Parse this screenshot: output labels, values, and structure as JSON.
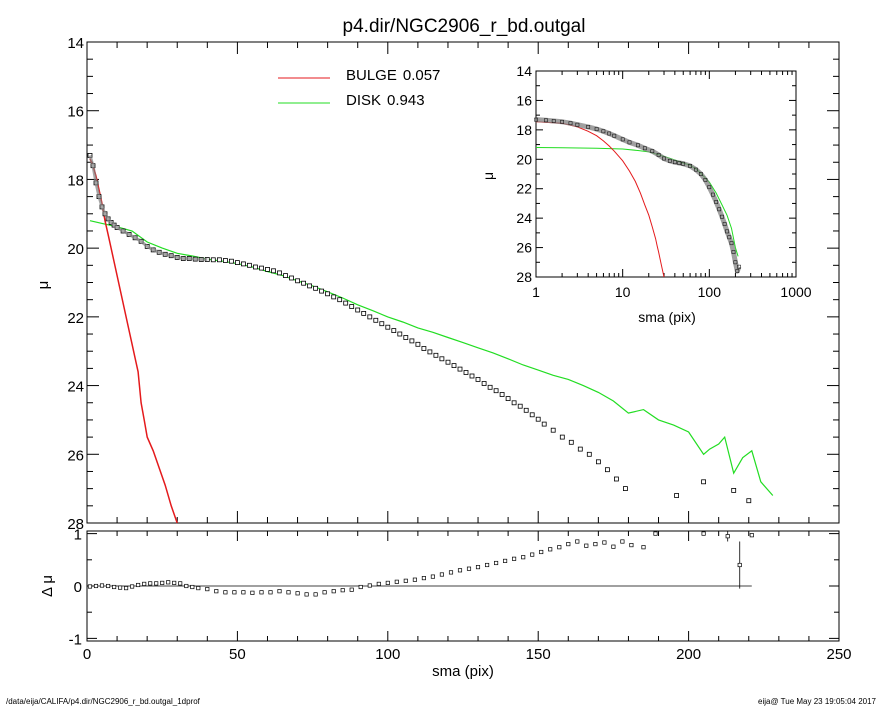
{
  "title": "p4.dir/NGC2906_r_bd.outgal",
  "footer_left": "/data/eija/CALIFA/p4.dir/NGC2906_r_bd.outgal_1dprof",
  "footer_right": "eija@  Tue May 23 19:05:04 2017",
  "colors": {
    "bulge": "#e41a1c",
    "disk": "#22dd22",
    "data": "#000000",
    "band": "#808080"
  },
  "legend": [
    {
      "name": "BULGE",
      "value": "0.057",
      "color": "#e41a1c"
    },
    {
      "name": "DISK",
      "value": "0.943",
      "color": "#22dd22"
    }
  ],
  "chart_data": [
    {
      "id": "main",
      "type": "scatter",
      "xlabel": "sma (pix)",
      "ylabel": "μ",
      "xlim": [
        0,
        250
      ],
      "ylim": [
        28,
        14
      ],
      "y_inverted": true,
      "xticks": [
        "0",
        "50",
        "100",
        "150",
        "200",
        "250"
      ],
      "yticks": [
        "14",
        "16",
        "18",
        "20",
        "22",
        "24",
        "26",
        "28"
      ],
      "data_points": [
        [
          1,
          17.3
        ],
        [
          2,
          17.6
        ],
        [
          3,
          18.1
        ],
        [
          4,
          18.5
        ],
        [
          5,
          18.8
        ],
        [
          6,
          19.0
        ],
        [
          7,
          19.15
        ],
        [
          8,
          19.25
        ],
        [
          9,
          19.33
        ],
        [
          10,
          19.4
        ],
        [
          12,
          19.5
        ],
        [
          14,
          19.6
        ],
        [
          16,
          19.7
        ],
        [
          18,
          19.8
        ],
        [
          20,
          19.95
        ],
        [
          22,
          20.05
        ],
        [
          24,
          20.12
        ],
        [
          26,
          20.18
        ],
        [
          28,
          20.22
        ],
        [
          30,
          20.27
        ],
        [
          32,
          20.3
        ],
        [
          34,
          20.3
        ],
        [
          36,
          20.32
        ],
        [
          38,
          20.33
        ],
        [
          40,
          20.33
        ],
        [
          42,
          20.34
        ],
        [
          44,
          20.34
        ],
        [
          46,
          20.36
        ],
        [
          48,
          20.38
        ],
        [
          50,
          20.42
        ],
        [
          52,
          20.46
        ],
        [
          54,
          20.5
        ],
        [
          56,
          20.55
        ],
        [
          58,
          20.58
        ],
        [
          60,
          20.62
        ],
        [
          62,
          20.66
        ],
        [
          64,
          20.72
        ],
        [
          66,
          20.8
        ],
        [
          68,
          20.87
        ],
        [
          70,
          20.95
        ],
        [
          72,
          21.02
        ],
        [
          74,
          21.1
        ],
        [
          76,
          21.17
        ],
        [
          78,
          21.25
        ],
        [
          80,
          21.33
        ],
        [
          82,
          21.42
        ],
        [
          84,
          21.5
        ],
        [
          86,
          21.6
        ],
        [
          88,
          21.7
        ],
        [
          90,
          21.8
        ],
        [
          92,
          21.9
        ],
        [
          94,
          22.0
        ],
        [
          96,
          22.1
        ],
        [
          98,
          22.2
        ],
        [
          100,
          22.3
        ],
        [
          102,
          22.4
        ],
        [
          104,
          22.5
        ],
        [
          106,
          22.6
        ],
        [
          108,
          22.7
        ],
        [
          110,
          22.8
        ],
        [
          112,
          22.92
        ],
        [
          114,
          23.02
        ],
        [
          116,
          23.12
        ],
        [
          118,
          23.22
        ],
        [
          120,
          23.32
        ],
        [
          122,
          23.42
        ],
        [
          124,
          23.52
        ],
        [
          126,
          23.62
        ],
        [
          128,
          23.72
        ],
        [
          130,
          23.82
        ],
        [
          132,
          23.94
        ],
        [
          134,
          24.05
        ],
        [
          136,
          24.15
        ],
        [
          138,
          24.26
        ],
        [
          140,
          24.38
        ],
        [
          142,
          24.5
        ],
        [
          144,
          24.6
        ],
        [
          146,
          24.72
        ],
        [
          148,
          24.85
        ],
        [
          150,
          24.98
        ],
        [
          152,
          25.12
        ],
        [
          155,
          25.3
        ],
        [
          158,
          25.5
        ],
        [
          161,
          25.65
        ],
        [
          164,
          25.85
        ],
        [
          167,
          26.0
        ],
        [
          170,
          26.22
        ],
        [
          173,
          26.45
        ],
        [
          176,
          26.72
        ],
        [
          179,
          27.0
        ],
        [
          196,
          27.2
        ],
        [
          205,
          26.8
        ],
        [
          215,
          27.05
        ],
        [
          220,
          27.35
        ]
      ],
      "bulge_curve": [
        [
          1,
          17.4
        ],
        [
          2,
          17.6
        ],
        [
          3,
          17.9
        ],
        [
          4,
          18.3
        ],
        [
          5,
          18.7
        ],
        [
          6,
          19.2
        ],
        [
          7,
          19.6
        ],
        [
          8,
          20.0
        ],
        [
          9,
          20.4
        ],
        [
          10,
          20.8
        ],
        [
          11,
          21.2
        ],
        [
          12,
          21.6
        ],
        [
          13,
          22.0
        ],
        [
          14,
          22.4
        ],
        [
          15,
          22.8
        ],
        [
          16,
          23.2
        ],
        [
          17,
          23.6
        ],
        [
          18,
          24.5
        ],
        [
          19,
          25.0
        ],
        [
          20,
          25.5
        ],
        [
          22,
          25.9
        ],
        [
          24,
          26.4
        ],
        [
          26,
          26.9
        ],
        [
          28,
          27.5
        ],
        [
          30,
          28.0
        ]
      ],
      "disk_curve": [
        [
          1,
          19.2
        ],
        [
          5,
          19.28
        ],
        [
          10,
          19.38
        ],
        [
          15,
          19.5
        ],
        [
          20,
          19.82
        ],
        [
          25,
          20.0
        ],
        [
          30,
          20.15
        ],
        [
          35,
          20.23
        ],
        [
          40,
          20.32
        ],
        [
          45,
          20.38
        ],
        [
          50,
          20.45
        ],
        [
          55,
          20.55
        ],
        [
          60,
          20.68
        ],
        [
          65,
          20.8
        ],
        [
          70,
          20.95
        ],
        [
          75,
          21.1
        ],
        [
          80,
          21.27
        ],
        [
          85,
          21.45
        ],
        [
          90,
          21.65
        ],
        [
          95,
          21.82
        ],
        [
          100,
          22.0
        ],
        [
          105,
          22.15
        ],
        [
          110,
          22.32
        ],
        [
          115,
          22.45
        ],
        [
          120,
          22.6
        ],
        [
          125,
          22.75
        ],
        [
          130,
          22.9
        ],
        [
          135,
          23.05
        ],
        [
          140,
          23.22
        ],
        [
          145,
          23.4
        ],
        [
          150,
          23.55
        ],
        [
          155,
          23.7
        ],
        [
          160,
          23.82
        ],
        [
          165,
          24.0
        ],
        [
          170,
          24.2
        ],
        [
          175,
          24.45
        ],
        [
          180,
          24.8
        ],
        [
          185,
          24.7
        ],
        [
          190,
          25.0
        ],
        [
          195,
          25.15
        ],
        [
          200,
          25.35
        ],
        [
          205,
          26.0
        ],
        [
          207,
          25.85
        ],
        [
          210,
          25.7
        ],
        [
          212,
          25.5
        ],
        [
          215,
          26.55
        ],
        [
          218,
          26.1
        ],
        [
          221,
          25.9
        ],
        [
          224,
          26.8
        ],
        [
          228,
          27.2
        ]
      ]
    },
    {
      "id": "residual",
      "type": "scatter",
      "xlabel": "sma (pix)",
      "ylabel": "Δ μ",
      "xlim": [
        0,
        250
      ],
      "ylim": [
        -1.05,
        1.05
      ],
      "xticks": [
        "0",
        "50",
        "100",
        "150",
        "200",
        "250"
      ],
      "yticks": [
        "1",
        "0",
        "-1"
      ],
      "points": [
        [
          1,
          -0.01
        ],
        [
          3,
          0.0
        ],
        [
          5,
          0.01
        ],
        [
          7,
          0.0
        ],
        [
          9,
          -0.02
        ],
        [
          11,
          -0.03
        ],
        [
          13,
          -0.04
        ],
        [
          15,
          -0.01
        ],
        [
          17,
          0.02
        ],
        [
          19,
          0.04
        ],
        [
          21,
          0.05
        ],
        [
          23,
          0.05
        ],
        [
          25,
          0.06
        ],
        [
          27,
          0.07
        ],
        [
          29,
          0.06
        ],
        [
          31,
          0.05
        ],
        [
          33,
          0.0
        ],
        [
          35,
          -0.02
        ],
        [
          37,
          -0.04
        ],
        [
          40,
          -0.06
        ],
        [
          43,
          -0.1
        ],
        [
          46,
          -0.12
        ],
        [
          49,
          -0.12
        ],
        [
          52,
          -0.12
        ],
        [
          55,
          -0.13
        ],
        [
          58,
          -0.12
        ],
        [
          61,
          -0.12
        ],
        [
          64,
          -0.1
        ],
        [
          67,
          -0.12
        ],
        [
          70,
          -0.14
        ],
        [
          73,
          -0.16
        ],
        [
          76,
          -0.16
        ],
        [
          79,
          -0.12
        ],
        [
          82,
          -0.1
        ],
        [
          85,
          -0.08
        ],
        [
          88,
          -0.07
        ],
        [
          91,
          -0.02
        ],
        [
          94,
          0.01
        ],
        [
          97,
          0.04
        ],
        [
          100,
          0.06
        ],
        [
          103,
          0.08
        ],
        [
          106,
          0.1
        ],
        [
          109,
          0.12
        ],
        [
          112,
          0.15
        ],
        [
          115,
          0.18
        ],
        [
          118,
          0.22
        ],
        [
          121,
          0.26
        ],
        [
          124,
          0.3
        ],
        [
          127,
          0.33
        ],
        [
          130,
          0.36
        ],
        [
          133,
          0.4
        ],
        [
          136,
          0.44
        ],
        [
          139,
          0.48
        ],
        [
          142,
          0.52
        ],
        [
          145,
          0.55
        ],
        [
          148,
          0.6
        ],
        [
          151,
          0.65
        ],
        [
          154,
          0.7
        ],
        [
          157,
          0.74
        ],
        [
          160,
          0.8
        ],
        [
          163,
          0.85
        ],
        [
          166,
          0.77
        ],
        [
          169,
          0.8
        ],
        [
          172,
          0.83
        ],
        [
          175,
          0.75
        ],
        [
          178,
          0.85
        ],
        [
          181,
          0.78
        ],
        [
          185,
          0.74
        ],
        [
          189,
          1.0
        ],
        [
          205,
          1.0
        ],
        [
          213,
          0.95
        ],
        [
          217,
          0.4
        ],
        [
          221,
          0.97
        ]
      ],
      "error_bars": [
        [
          217,
          0.4,
          0.45
        ],
        [
          213,
          0.95,
          0.1
        ]
      ]
    },
    {
      "id": "inset",
      "type": "line",
      "xlabel": "sma (pix)",
      "ylabel": "μ",
      "xscale": "log",
      "xlim": [
        1,
        1000
      ],
      "ylim": [
        28,
        14
      ],
      "xticks": [
        "1",
        "10",
        "100",
        "1000"
      ],
      "yticks": [
        "14",
        "16",
        "18",
        "20",
        "22",
        "24",
        "26",
        "28"
      ],
      "data_points": [
        [
          1,
          17.3
        ],
        [
          1.3,
          17.35
        ],
        [
          1.6,
          17.4
        ],
        [
          2,
          17.45
        ],
        [
          2.5,
          17.55
        ],
        [
          3,
          17.65
        ],
        [
          4,
          17.8
        ],
        [
          5,
          17.95
        ],
        [
          6,
          18.1
        ],
        [
          7,
          18.25
        ],
        [
          8,
          18.4
        ],
        [
          10,
          18.65
        ],
        [
          12,
          18.85
        ],
        [
          15,
          19.05
        ],
        [
          18,
          19.25
        ],
        [
          22,
          19.45
        ],
        [
          26,
          19.7
        ],
        [
          30,
          19.95
        ],
        [
          35,
          20.1
        ],
        [
          40,
          20.2
        ],
        [
          45,
          20.25
        ],
        [
          50,
          20.3
        ],
        [
          60,
          20.45
        ],
        [
          70,
          20.7
        ],
        [
          80,
          21.0
        ],
        [
          90,
          21.4
        ],
        [
          100,
          21.9
        ],
        [
          110,
          22.4
        ],
        [
          120,
          22.9
        ],
        [
          130,
          23.4
        ],
        [
          140,
          23.9
        ],
        [
          150,
          24.4
        ],
        [
          160,
          24.9
        ],
        [
          170,
          25.3
        ],
        [
          180,
          25.7
        ],
        [
          190,
          26.3
        ],
        [
          200,
          27.0
        ],
        [
          210,
          27.6
        ],
        [
          220,
          27.3
        ]
      ],
      "bulge_curve": [
        [
          1,
          17.45
        ],
        [
          2,
          17.55
        ],
        [
          3,
          17.8
        ],
        [
          4,
          18.1
        ],
        [
          5,
          18.4
        ],
        [
          6,
          18.75
        ],
        [
          7,
          19.1
        ],
        [
          8,
          19.45
        ],
        [
          10,
          20.1
        ],
        [
          12,
          20.8
        ],
        [
          14,
          21.5
        ],
        [
          16,
          22.3
        ],
        [
          18,
          23.1
        ],
        [
          20,
          23.8
        ],
        [
          22,
          24.6
        ],
        [
          24,
          25.4
        ],
        [
          25,
          25.9
        ],
        [
          26,
          26.3
        ],
        [
          28,
          27.2
        ],
        [
          30,
          28.0
        ]
      ],
      "disk_curve": [
        [
          1,
          19.2
        ],
        [
          2,
          19.22
        ],
        [
          5,
          19.25
        ],
        [
          10,
          19.3
        ],
        [
          15,
          19.4
        ],
        [
          20,
          19.5
        ],
        [
          30,
          19.8
        ],
        [
          40,
          20.05
        ],
        [
          50,
          20.25
        ],
        [
          60,
          20.4
        ],
        [
          70,
          20.65
        ],
        [
          80,
          20.95
        ],
        [
          100,
          21.55
        ],
        [
          120,
          22.3
        ],
        [
          140,
          23.1
        ],
        [
          160,
          23.8
        ],
        [
          180,
          24.7
        ],
        [
          200,
          26.0
        ],
        [
          215,
          26.6
        ]
      ]
    }
  ]
}
